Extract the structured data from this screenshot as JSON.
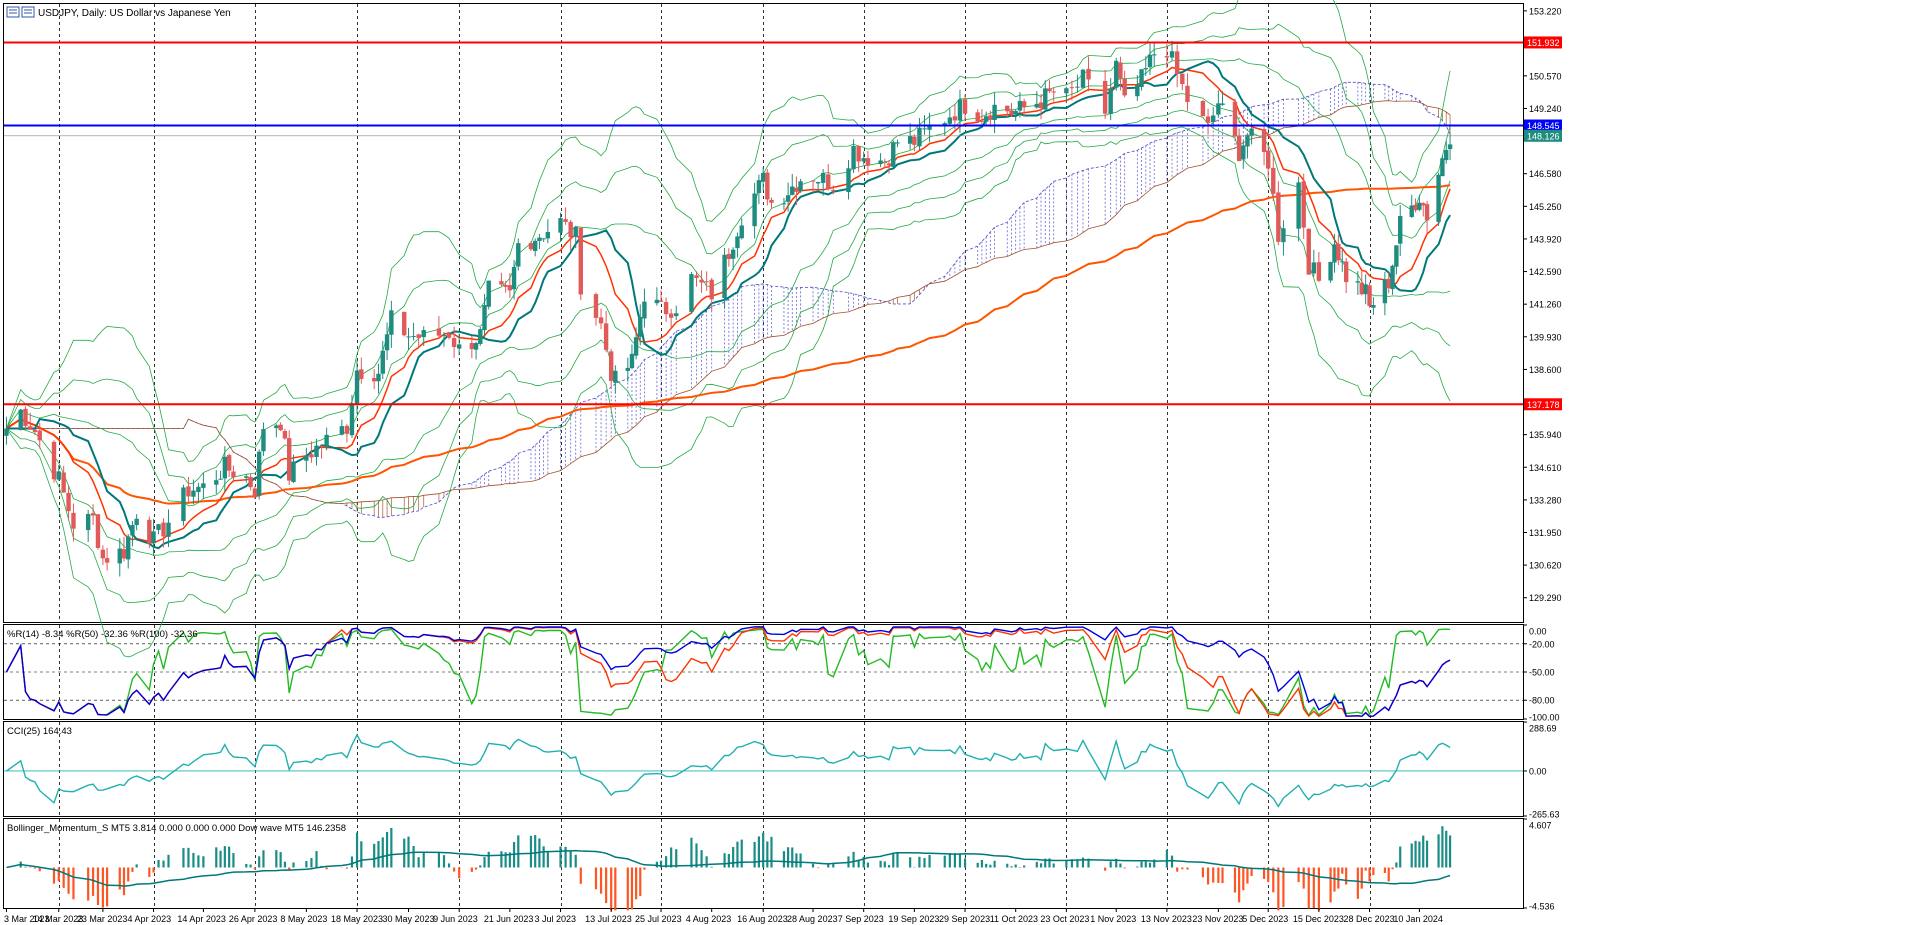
{
  "window": {
    "title": "USDJPY, Daily:  US Dollar vs Japanese Yen",
    "icon": "chart-window-icon"
  },
  "colors": {
    "bull": "#1e8c7e",
    "bear": "#e05a5a",
    "ma_fast": "#ff3300",
    "ma_slow": "#ff5500",
    "wave": "#00787a",
    "bollinger": "#22aa44",
    "cloud_bull": "#4a4acc",
    "cloud_bear": "#a0522d",
    "level_red": "#ff0000",
    "level_blue": "#0000ff",
    "wpr_14": "#22bb22",
    "wpr_50": "#ff3300",
    "wpr_100": "#0000dd",
    "cci": "#20b0b0",
    "hist_pos": "#1a8c86",
    "hist_neg": "#ff5522"
  },
  "chart_data": [
    {
      "type": "candlestick",
      "name": "main",
      "title": "USDJPY, Daily:  US Dollar vs Japanese Yen",
      "y_ticks": [
        "153.220",
        "151.932",
        "150.570",
        "149.240",
        "148.545",
        "148.126",
        "146.580",
        "145.250",
        "143.920",
        "142.590",
        "141.260",
        "139.930",
        "138.600",
        "137.178",
        "135.940",
        "134.610",
        "133.280",
        "131.950",
        "130.620",
        "129.290"
      ],
      "ylim": [
        128.3,
        153.5
      ],
      "price_tags": [
        {
          "label": "151.932",
          "value": 151.932,
          "color": "#ff0000"
        },
        {
          "label": "148.545",
          "value": 148.545,
          "color": "#0000ff"
        },
        {
          "label": "148.126",
          "value": 148.126,
          "color": "#1e8c7e"
        },
        {
          "label": "137.178",
          "value": 137.178,
          "color": "#ff0000"
        }
      ],
      "horizontal_levels": [
        {
          "value": 151.932,
          "color": "#ff0000"
        },
        {
          "value": 148.545,
          "color": "#0000ff"
        },
        {
          "value": 137.178,
          "color": "#ff0000"
        }
      ],
      "x_labels": [
        "3 Mar 2023",
        "14 Mar 2023",
        "23 Mar 2023",
        "4 Apr 2023",
        "14 Apr 2023",
        "26 Apr 2023",
        "8 May 2023",
        "18 May 2023",
        "30 May 2023",
        "9 Jun 2023",
        "21 Jun 2023",
        "3 Jul 2023",
        "13 Jul 2023",
        "25 Jul 2023",
        "4 Aug 2023",
        "16 Aug 2023",
        "28 Aug 2023",
        "7 Sep 2023",
        "19 Sep 2023",
        "29 Sep 2023",
        "11 Oct 2023",
        "23 Oct 2023",
        "1 Nov 2023",
        "13 Nov 2023",
        "23 Nov 2023",
        "5 Dec 2023",
        "15 Dec 2023",
        "28 Dec 2023",
        "10 Jan 2024"
      ],
      "close_path": [
        {
          "x": "3 Mar 2023",
          "y": 136.2
        },
        {
          "x": "6 Mar 2023",
          "y": 136.9
        },
        {
          "x": "9 Mar 2023",
          "y": 136.1
        },
        {
          "x": "14 Mar 2023",
          "y": 134.1
        },
        {
          "x": "17 Mar 2023",
          "y": 132.3
        },
        {
          "x": "21 Mar 2023",
          "y": 132.5
        },
        {
          "x": "23 Mar 2023",
          "y": 130.9
        },
        {
          "x": "28 Mar 2023",
          "y": 131.2
        },
        {
          "x": "31 Mar 2023",
          "y": 132.8
        },
        {
          "x": "4 Apr 2023",
          "y": 131.6
        },
        {
          "x": "7 Apr 2023",
          "y": 132.4
        },
        {
          "x": "11 Apr 2023",
          "y": 133.7
        },
        {
          "x": "14 Apr 2023",
          "y": 133.8
        },
        {
          "x": "19 Apr 2023",
          "y": 134.6
        },
        {
          "x": "24 Apr 2023",
          "y": 134.2
        },
        {
          "x": "26 Apr 2023",
          "y": 133.7
        },
        {
          "x": "28 Apr 2023",
          "y": 136.3
        },
        {
          "x": "2 May 2023",
          "y": 136.5
        },
        {
          "x": "4 May 2023",
          "y": 134.3
        },
        {
          "x": "8 May 2023",
          "y": 135.1
        },
        {
          "x": "12 May 2023",
          "y": 135.7
        },
        {
          "x": "16 May 2023",
          "y": 136.3
        },
        {
          "x": "18 May 2023",
          "y": 138.6
        },
        {
          "x": "23 May 2023",
          "y": 138.5
        },
        {
          "x": "26 May 2023",
          "y": 140.6
        },
        {
          "x": "30 May 2023",
          "y": 140.0
        },
        {
          "x": "2 Jun 2023",
          "y": 139.9
        },
        {
          "x": "7 Jun 2023",
          "y": 140.1
        },
        {
          "x": "9 Jun 2023",
          "y": 139.4
        },
        {
          "x": "14 Jun 2023",
          "y": 140.0
        },
        {
          "x": "16 Jun 2023",
          "y": 141.8
        },
        {
          "x": "21 Jun 2023",
          "y": 141.6
        },
        {
          "x": "23 Jun 2023",
          "y": 143.7
        },
        {
          "x": "27 Jun 2023",
          "y": 144.0
        },
        {
          "x": "30 Jun 2023",
          "y": 144.3
        },
        {
          "x": "3 Jul 2023",
          "y": 144.6
        },
        {
          "x": "6 Jul 2023",
          "y": 144.0
        },
        {
          "x": "7 Jul 2023",
          "y": 142.1
        },
        {
          "x": "11 Jul 2023",
          "y": 140.4
        },
        {
          "x": "13 Jul 2023",
          "y": 138.5
        },
        {
          "x": "14 Jul 2023",
          "y": 138.1
        },
        {
          "x": "18 Jul 2023",
          "y": 138.9
        },
        {
          "x": "21 Jul 2023",
          "y": 141.7
        },
        {
          "x": "25 Jul 2023",
          "y": 141.0
        },
        {
          "x": "28 Jul 2023",
          "y": 141.2
        },
        {
          "x": "31 Jul 2023",
          "y": 142.3
        },
        {
          "x": "4 Aug 2023",
          "y": 141.7
        },
        {
          "x": "8 Aug 2023",
          "y": 143.4
        },
        {
          "x": "11 Aug 2023",
          "y": 144.9
        },
        {
          "x": "16 Aug 2023",
          "y": 146.3
        },
        {
          "x": "18 Aug 2023",
          "y": 145.4
        },
        {
          "x": "22 Aug 2023",
          "y": 145.9
        },
        {
          "x": "25 Aug 2023",
          "y": 146.4
        },
        {
          "x": "28 Aug 2023",
          "y": 146.5
        },
        {
          "x": "1 Sep 2023",
          "y": 146.2
        },
        {
          "x": "5 Sep 2023",
          "y": 147.6
        },
        {
          "x": "7 Sep 2023",
          "y": 147.3
        },
        {
          "x": "12 Sep 2023",
          "y": 147.1
        },
        {
          "x": "15 Sep 2023",
          "y": 147.9
        },
        {
          "x": "19 Sep 2023",
          "y": 147.9
        },
        {
          "x": "22 Sep 2023",
          "y": 148.4
        },
        {
          "x": "26 Sep 2023",
          "y": 149.0
        },
        {
          "x": "29 Sep 2023",
          "y": 149.4
        },
        {
          "x": "3 Oct 2023",
          "y": 149.0
        },
        {
          "x": "6 Oct 2023",
          "y": 149.3
        },
        {
          "x": "11 Oct 2023",
          "y": 149.1
        },
        {
          "x": "16 Oct 2023",
          "y": 149.5
        },
        {
          "x": "20 Oct 2023",
          "y": 149.9
        },
        {
          "x": "23 Oct 2023",
          "y": 149.7
        },
        {
          "x": "26 Oct 2023",
          "y": 150.4
        },
        {
          "x": "30 Oct 2023",
          "y": 149.1
        },
        {
          "x": "1 Nov 2023",
          "y": 151.0
        },
        {
          "x": "3 Nov 2023",
          "y": 149.4
        },
        {
          "x": "7 Nov 2023",
          "y": 150.4
        },
        {
          "x": "10 Nov 2023",
          "y": 151.5
        },
        {
          "x": "13 Nov 2023",
          "y": 151.7
        },
        {
          "x": "15 Nov 2023",
          "y": 150.6
        },
        {
          "x": "17 Nov 2023",
          "y": 149.6
        },
        {
          "x": "21 Nov 2023",
          "y": 148.4
        },
        {
          "x": "23 Nov 2023",
          "y": 149.5
        },
        {
          "x": "28 Nov 2023",
          "y": 147.5
        },
        {
          "x": "30 Nov 2023",
          "y": 148.2
        },
        {
          "x": "5 Dec 2023",
          "y": 147.1
        },
        {
          "x": "7 Dec 2023",
          "y": 144.1
        },
        {
          "x": "11 Dec 2023",
          "y": 146.2
        },
        {
          "x": "13 Dec 2023",
          "y": 142.9
        },
        {
          "x": "15 Dec 2023",
          "y": 142.2
        },
        {
          "x": "19 Dec 2023",
          "y": 143.8
        },
        {
          "x": "22 Dec 2023",
          "y": 142.4
        },
        {
          "x": "27 Dec 2023",
          "y": 141.7
        },
        {
          "x": "28 Dec 2023",
          "y": 141.1
        },
        {
          "x": "2 Jan 2024",
          "y": 142.2
        },
        {
          "x": "5 Jan 2024",
          "y": 144.5
        },
        {
          "x": "10 Jan 2024",
          "y": 145.7
        },
        {
          "x": "12 Jan 2024",
          "y": 144.9
        },
        {
          "x": "16 Jan 2024",
          "y": 147.2
        },
        {
          "x": "18 Jan 2024",
          "y": 148.2
        }
      ]
    },
    {
      "type": "line",
      "name": "williams-r",
      "label": "%R(14) -8.34 %R(50) -32.36 %R(100) -32.36",
      "y_ticks": [
        "0.00",
        "-20.00",
        "-50.00",
        "-80.00",
        "-100.00"
      ],
      "ylim": [
        -100,
        0
      ],
      "series": [
        {
          "name": "%R(14)",
          "color": "#22bb22"
        },
        {
          "name": "%R(50)",
          "color": "#ff3300"
        },
        {
          "name": "%R(100)",
          "color": "#0000dd"
        }
      ]
    },
    {
      "type": "line",
      "name": "cci",
      "label": "CCI(25) 164.43",
      "y_ticks": [
        "288.69",
        "0.00",
        "-265.63"
      ],
      "ylim": [
        -265.63,
        288.69
      ],
      "series": [
        {
          "name": "CCI(25)",
          "color": "#20b0b0"
        }
      ]
    },
    {
      "type": "bar",
      "name": "bollinger-momentum",
      "label": "Bollinger_Momentum_S MT5 3.814 0.000 0.000 0.000 Dow wave MT5 146.2358",
      "y_ticks": [
        "4.607",
        "-4.536"
      ],
      "ylim": [
        -4.536,
        4.607
      ]
    }
  ]
}
